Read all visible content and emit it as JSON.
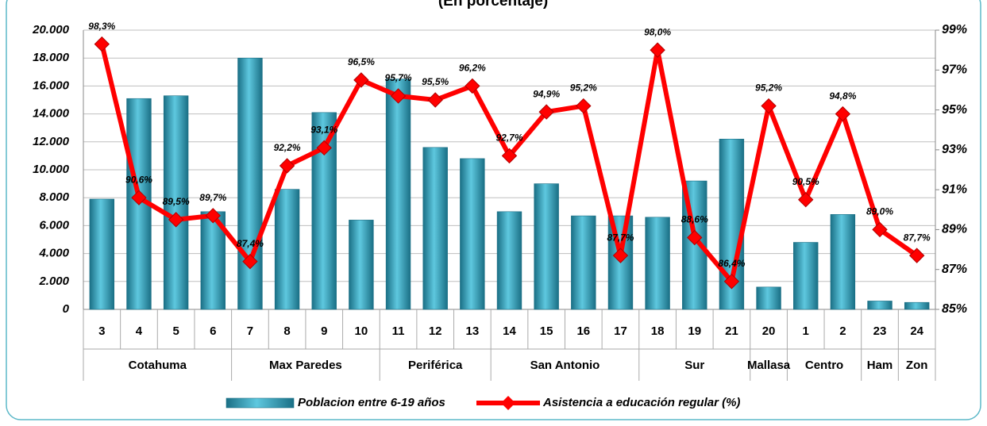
{
  "chart_data": {
    "type": "bar_line",
    "title": "(En porcentaje)",
    "categories": [
      "3",
      "4",
      "5",
      "6",
      "7",
      "8",
      "9",
      "10",
      "11",
      "12",
      "13",
      "14",
      "15",
      "16",
      "17",
      "18",
      "19",
      "21",
      "20",
      "1",
      "2",
      "23",
      "24"
    ],
    "category_groups": [
      "Cotahuma",
      "Cotahuma",
      "Cotahuma",
      "Cotahuma",
      "Max Paredes",
      "Max Paredes",
      "Max Paredes",
      "Max Paredes",
      "Periférica",
      "Periférica",
      "Periférica",
      "San Antonio",
      "San Antonio",
      "San Antonio",
      "San Antonio",
      "Sur",
      "Sur",
      "Sur",
      "Mallasa",
      "Centro",
      "Centro",
      "Ham",
      "Zon"
    ],
    "series": [
      {
        "name": "Poblacion entre 6-19 años",
        "type": "bar",
        "color": "#2e9bb5",
        "axis": "y",
        "values": [
          7900,
          15100,
          15300,
          7000,
          18000,
          8600,
          14100,
          6400,
          16500,
          11600,
          10800,
          7000,
          9000,
          6700,
          6700,
          6600,
          9200,
          12200,
          1600,
          4800,
          6800,
          600,
          500
        ]
      },
      {
        "name": "Asistencia a educación regular (%)",
        "type": "line",
        "color": "#ff0000",
        "axis": "y2",
        "values": [
          98.3,
          90.6,
          89.5,
          89.7,
          87.4,
          92.2,
          93.1,
          96.5,
          95.7,
          95.5,
          96.2,
          92.7,
          94.9,
          95.2,
          87.7,
          98.0,
          88.6,
          86.4,
          95.2,
          90.5,
          94.8,
          89.0,
          87.7
        ],
        "value_labels": [
          "98,3%",
          "90,6%",
          "89,5%",
          "89,7%",
          "87,4%",
          "92,2%",
          "93,1%",
          "96,5%",
          "95,7%",
          "95,5%",
          "96,2%",
          "92,7%",
          "94,9%",
          "95,2%",
          "87,7%",
          "98,0%",
          "88,6%",
          "86,4%",
          "95,2%",
          "90,5%",
          "94,8%",
          "89,0%",
          "87,7%"
        ]
      }
    ],
    "ylim": [
      0,
      20000
    ],
    "yticks": [
      0,
      {
        "value": 2000,
        "label": "2.000"
      },
      {
        "value": 4000,
        "label": "4.000"
      },
      {
        "value": 6000,
        "label": "6.000"
      },
      {
        "value": 8000,
        "label": "8.000"
      },
      {
        "value": 10000,
        "label": "10.000"
      },
      {
        "value": 12000,
        "label": "12.000"
      },
      {
        "value": 14000,
        "label": "14.000"
      },
      {
        "value": 16000,
        "label": "16.000"
      },
      {
        "value": 18000,
        "label": "18.000"
      },
      {
        "value": 20000,
        "label": "20.000"
      }
    ],
    "y2lim": [
      85,
      99
    ],
    "y2ticks": [
      {
        "value": 85,
        "label": "85%"
      },
      {
        "value": 87,
        "label": "87%"
      },
      {
        "value": 89,
        "label": "89%"
      },
      {
        "value": 91,
        "label": "91%"
      },
      {
        "value": 93,
        "label": "93%"
      },
      {
        "value": 95,
        "label": "95%"
      },
      {
        "value": 97,
        "label": "97%"
      },
      {
        "value": 99,
        "label": "99%"
      }
    ],
    "grid": true,
    "legend": "bottom"
  }
}
